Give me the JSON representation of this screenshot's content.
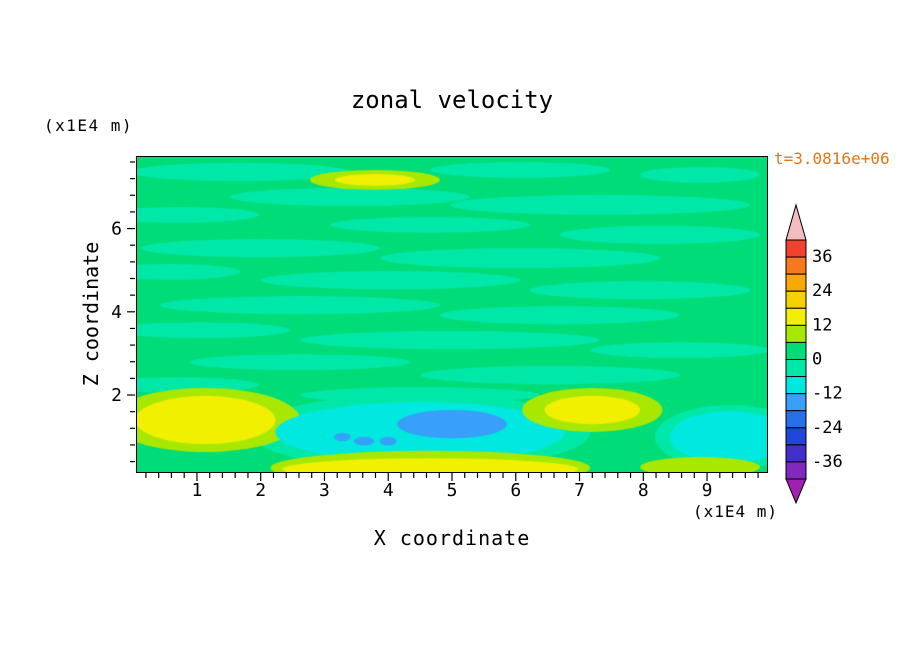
{
  "page": {
    "background_color": "#FFFFFF"
  },
  "chart_data": {
    "type": "filled_contour",
    "title": "zonal velocity",
    "timestamp": "t=3.0816e+06",
    "timestamp_color": "#E07818",
    "xlabel": "X coordinate",
    "zlabel": "Z coordinate",
    "x_unit": "(x1E4 m)",
    "z_unit": "(x1E4 m)",
    "xlim": [
      0.06,
      9.94
    ],
    "zlim": [
      0.15,
      7.72
    ],
    "x_major_ticks": [
      1,
      2,
      3,
      4,
      5,
      6,
      7,
      8,
      9
    ],
    "x_minor_step": 0.2,
    "z_major_ticks": [
      2,
      4,
      6
    ],
    "z_minor_step": 0.4,
    "contour_interval": 6,
    "levels_min": -42,
    "levels_max": 42,
    "colorbar_labels": [
      36,
      24,
      12,
      0,
      -12,
      -24,
      -36
    ],
    "palette": [
      {
        "min": -48,
        "max": -42,
        "color": "#A020B0"
      },
      {
        "min": -42,
        "max": -36,
        "color": "#8028C0"
      },
      {
        "min": -36,
        "max": -30,
        "color": "#4030C8"
      },
      {
        "min": -30,
        "max": -24,
        "color": "#2048D8"
      },
      {
        "min": -24,
        "max": -18,
        "color": "#2870E8"
      },
      {
        "min": -18,
        "max": -12,
        "color": "#38A0F8"
      },
      {
        "min": -12,
        "max": -6,
        "color": "#00E8E0"
      },
      {
        "min": -6,
        "max": 0,
        "color": "#00E8A8"
      },
      {
        "min": 0,
        "max": 6,
        "color": "#00DC78"
      },
      {
        "min": 6,
        "max": 12,
        "color": "#A8E800"
      },
      {
        "min": 12,
        "max": 18,
        "color": "#F0F000"
      },
      {
        "min": 18,
        "max": 24,
        "color": "#F8D000"
      },
      {
        "min": 24,
        "max": 30,
        "color": "#F8A800"
      },
      {
        "min": 30,
        "max": 36,
        "color": "#F87820"
      },
      {
        "min": 36,
        "max": 42,
        "color": "#F04030"
      },
      {
        "min": 42,
        "max": 48,
        "color": "#F4BEBE"
      }
    ],
    "background_value": 2,
    "blobs": [
      {
        "x": 1.68,
        "z": 7.36,
        "rx": 1.73,
        "rz": 0.22,
        "v": -3
      },
      {
        "x": 6.07,
        "z": 7.41,
        "rx": 1.41,
        "rz": 0.19,
        "v": -3
      },
      {
        "x": 8.89,
        "z": 7.29,
        "rx": 0.94,
        "rz": 0.19,
        "v": -3
      },
      {
        "x": 3.4,
        "z": 6.76,
        "rx": 1.88,
        "rz": 0.22,
        "v": -3
      },
      {
        "x": 7.32,
        "z": 6.57,
        "rx": 2.35,
        "rz": 0.24,
        "v": -3
      },
      {
        "x": 0.73,
        "z": 6.33,
        "rx": 1.25,
        "rz": 0.19,
        "v": -3
      },
      {
        "x": 4.66,
        "z": 6.09,
        "rx": 1.57,
        "rz": 0.19,
        "v": -3
      },
      {
        "x": 8.26,
        "z": 5.85,
        "rx": 1.57,
        "rz": 0.22,
        "v": -3
      },
      {
        "x": 1.99,
        "z": 5.53,
        "rx": 1.88,
        "rz": 0.22,
        "v": -3
      },
      {
        "x": 6.07,
        "z": 5.29,
        "rx": 2.2,
        "rz": 0.24,
        "v": -3
      },
      {
        "x": 0.58,
        "z": 4.96,
        "rx": 1.1,
        "rz": 0.19,
        "v": -3
      },
      {
        "x": 4.03,
        "z": 4.76,
        "rx": 2.04,
        "rz": 0.22,
        "v": -3
      },
      {
        "x": 7.95,
        "z": 4.52,
        "rx": 1.73,
        "rz": 0.22,
        "v": -3
      },
      {
        "x": 2.62,
        "z": 4.16,
        "rx": 2.2,
        "rz": 0.22,
        "v": -3
      },
      {
        "x": 6.69,
        "z": 3.92,
        "rx": 1.88,
        "rz": 0.22,
        "v": -3
      },
      {
        "x": 1.05,
        "z": 3.56,
        "rx": 1.41,
        "rz": 0.19,
        "v": -3
      },
      {
        "x": 4.97,
        "z": 3.32,
        "rx": 2.35,
        "rz": 0.22,
        "v": -3
      },
      {
        "x": 8.58,
        "z": 3.08,
        "rx": 1.41,
        "rz": 0.19,
        "v": -3
      },
      {
        "x": 2.62,
        "z": 2.79,
        "rx": 1.73,
        "rz": 0.19,
        "v": -3
      },
      {
        "x": 6.54,
        "z": 2.48,
        "rx": 2.04,
        "rz": 0.22,
        "v": -3
      },
      {
        "x": 0.73,
        "z": 2.24,
        "rx": 1.25,
        "rz": 0.19,
        "v": -3
      },
      {
        "x": 4.5,
        "z": 2.0,
        "rx": 1.88,
        "rz": 0.19,
        "v": -3
      },
      {
        "x": 4.5,
        "z": 1.11,
        "rx": 2.67,
        "rz": 0.91,
        "v": -3
      },
      {
        "x": 9.36,
        "z": 0.99,
        "rx": 1.18,
        "rz": 0.77,
        "v": -3
      },
      {
        "x": 1.13,
        "z": 1.4,
        "rx": 1.49,
        "rz": 0.77,
        "v": 8
      },
      {
        "x": 1.13,
        "z": 1.4,
        "rx": 1.1,
        "rz": 0.58,
        "v": 14
      },
      {
        "x": 4.5,
        "z": 1.11,
        "rx": 2.27,
        "rz": 0.72,
        "v": -8
      },
      {
        "x": 9.36,
        "z": 0.99,
        "rx": 0.94,
        "rz": 0.62,
        "v": -8
      },
      {
        "x": 5.0,
        "z": 1.3,
        "rx": 0.86,
        "rz": 0.34,
        "v": -15
      },
      {
        "x": 3.28,
        "z": 0.99,
        "rx": 0.13,
        "rz": 0.1,
        "v": -15
      },
      {
        "x": 3.62,
        "z": 0.89,
        "rx": 0.16,
        "rz": 0.1,
        "v": -15
      },
      {
        "x": 4.0,
        "z": 0.89,
        "rx": 0.13,
        "rz": 0.1,
        "v": -15
      },
      {
        "x": 4.66,
        "z": 0.25,
        "rx": 2.51,
        "rz": 0.41,
        "v": 8
      },
      {
        "x": 4.66,
        "z": 0.22,
        "rx": 2.32,
        "rz": 0.26,
        "v": 14
      },
      {
        "x": 7.2,
        "z": 1.64,
        "rx": 1.1,
        "rz": 0.53,
        "v": 8
      },
      {
        "x": 7.2,
        "z": 1.64,
        "rx": 0.75,
        "rz": 0.34,
        "v": 14
      },
      {
        "x": 8.89,
        "z": 0.27,
        "rx": 0.94,
        "rz": 0.24,
        "v": 8
      },
      {
        "x": 3.79,
        "z": 7.17,
        "rx": 1.02,
        "rz": 0.24,
        "v": 8
      },
      {
        "x": 3.79,
        "z": 7.17,
        "rx": 0.63,
        "rz": 0.14,
        "v": 13
      }
    ]
  }
}
